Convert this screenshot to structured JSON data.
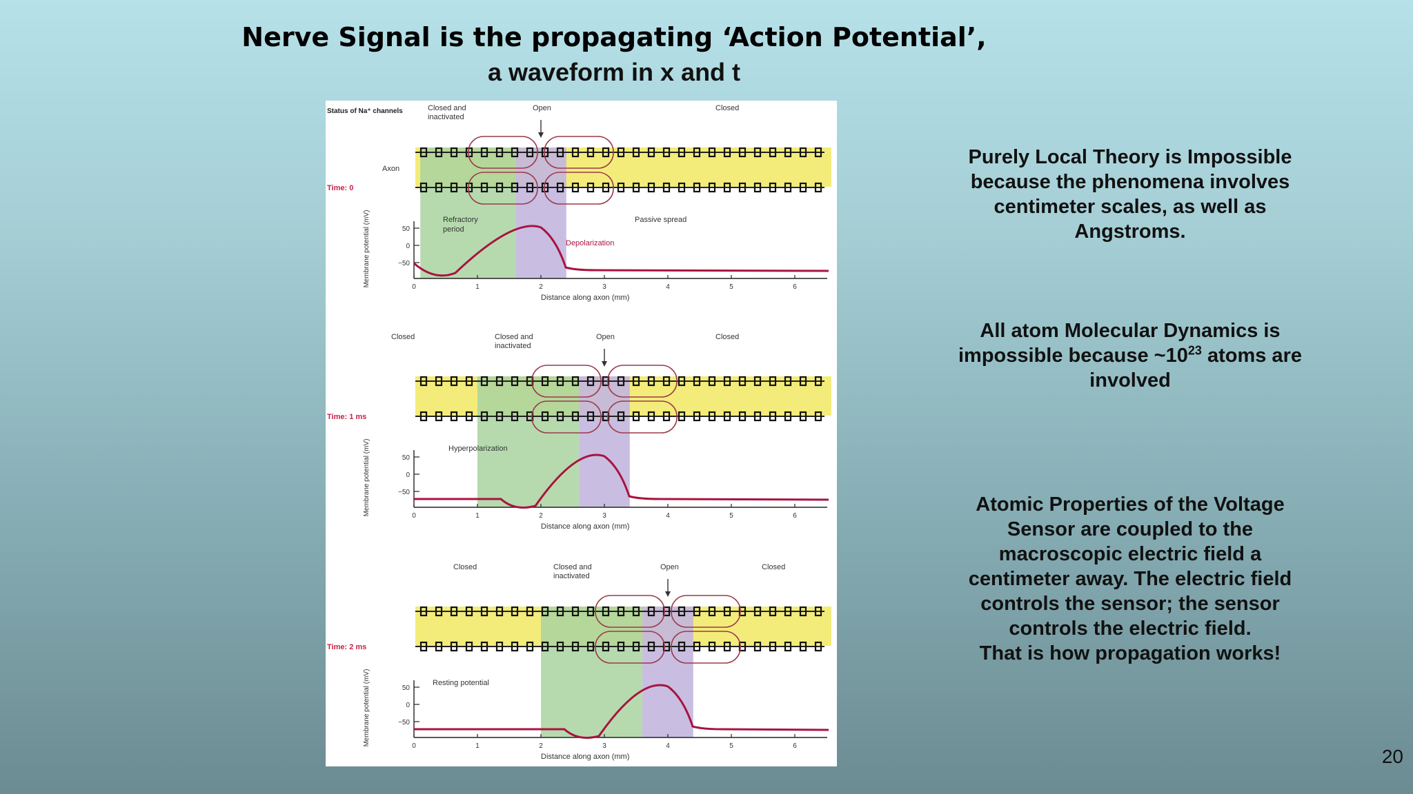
{
  "slide": {
    "title_line1": "Nerve Signal is the propagating ‘Action Potential’,",
    "title_line2": "a waveform in x and t",
    "page_number": "20"
  },
  "side_text": {
    "block1": "Purely Local Theory is Impossible because the phenomena involves centimeter scales, as well as Angstroms.",
    "block2_pre": "All atom Molecular Dynamics is impossible because ~10",
    "block2_sup": "23",
    "block2_post": " atoms are involved",
    "block3_main": "Atomic Properties of the Voltage Sensor are coupled to the macroscopic electric field a centimeter away. The electric field controls the sensor; the sensor controls the electric field.",
    "block3_last": "That is how propagation works!"
  },
  "figure": {
    "status_label": "Status of Na⁺ channels",
    "axon_label": "Axon",
    "ylabel": "Membrane potential (mV)",
    "xlabel": "Distance along axon (mm)",
    "x_ticks": [
      "0",
      "1",
      "2",
      "3",
      "4",
      "5",
      "6"
    ],
    "y_ticks": [
      "50",
      "0",
      "−50"
    ],
    "panels": [
      {
        "time_label": "Time: 0",
        "channel_states": [
          "Closed and inactivated",
          "Open",
          "Closed"
        ],
        "annotations": [
          "Refractory period",
          "Depolarization",
          "Passive spread"
        ]
      },
      {
        "time_label": "Time: 1 ms",
        "channel_states": [
          "Closed",
          "Closed and inactivated",
          "Open",
          "Closed"
        ],
        "annotations": [
          "Hyperpolarization"
        ]
      },
      {
        "time_label": "Time: 2 ms",
        "channel_states": [
          "Closed",
          "Closed and inactivated",
          "Open",
          "Closed"
        ],
        "annotations": [
          "Resting potential"
        ]
      }
    ],
    "colors": {
      "axon": "#f3ec7a",
      "refractory": "#a9d3a0",
      "depolarized": "#c3b6df",
      "trace": "#a8133f",
      "time_label": "#c8204a"
    }
  }
}
